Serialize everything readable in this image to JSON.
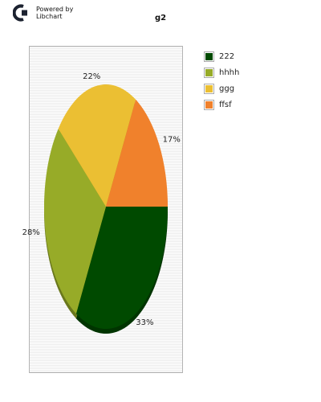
{
  "header": {
    "brand_line1": "Powered by",
    "brand_line2": "Libchart",
    "logo_icon": "libchart-logo-icon"
  },
  "chart_data": {
    "type": "pie",
    "title": "g2",
    "categories": [
      "222",
      "hhhh",
      "ggg",
      "ffsf"
    ],
    "values": [
      33,
      28,
      22,
      17
    ],
    "labels": [
      "33%",
      "28%",
      "22%",
      "17%"
    ],
    "colors": [
      "#004a00",
      "#97ab28",
      "#ebbf33",
      "#f0812c"
    ],
    "legend_position": "right",
    "grid": true
  }
}
